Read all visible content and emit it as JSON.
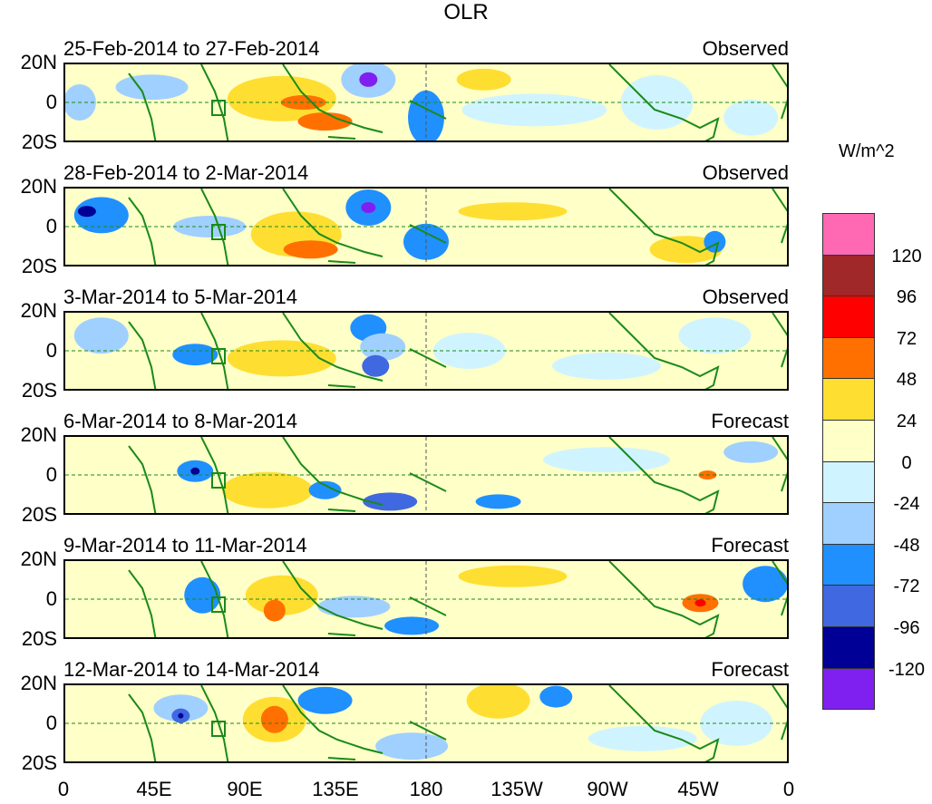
{
  "title": "OLR",
  "units": "W/m^2",
  "y_labels": [
    "20N",
    "0",
    "20S"
  ],
  "x_labels": [
    "0",
    "45E",
    "90E",
    "135E",
    "180",
    "135W",
    "90W",
    "45W",
    "0"
  ],
  "panels": [
    {
      "dates": "25-Feb-2014 to 27-Feb-2014",
      "type": "Observed"
    },
    {
      "dates": "28-Feb-2014 to 2-Mar-2014",
      "type": "Observed"
    },
    {
      "dates": "3-Mar-2014 to 5-Mar-2014",
      "type": "Observed"
    },
    {
      "dates": "6-Mar-2014 to 8-Mar-2014",
      "type": "Forecast"
    },
    {
      "dates": "9-Mar-2014 to 11-Mar-2014",
      "type": "Forecast"
    },
    {
      "dates": "12-Mar-2014 to 14-Mar-2014",
      "type": "Forecast"
    }
  ],
  "colorbar": {
    "colors": [
      "#ff69b4",
      "#a02828",
      "#ff0000",
      "#ff7000",
      "#ffde32",
      "#ffffc8",
      "#d0f4ff",
      "#a0d0ff",
      "#2090ff",
      "#4068e0",
      "#000096",
      "#8020f0"
    ],
    "labels": [
      "120",
      "96",
      "72",
      "48",
      "24",
      "0",
      "-24",
      "-48",
      "-72",
      "-96",
      "-120"
    ]
  }
}
